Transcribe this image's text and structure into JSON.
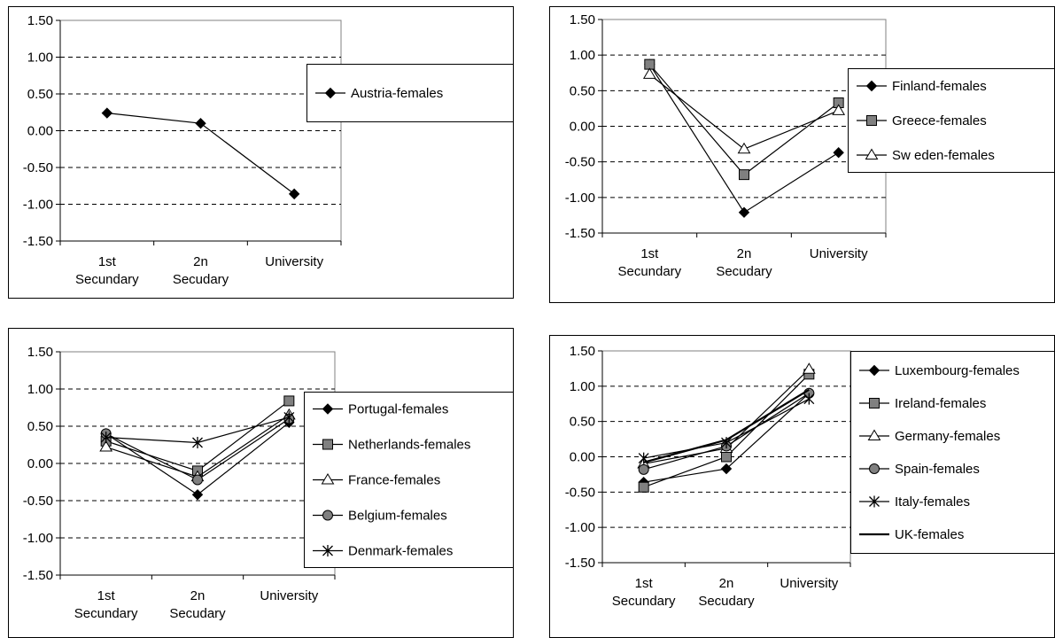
{
  "chart_data": [
    {
      "type": "line",
      "title": "",
      "xlabel": "",
      "ylabel": "",
      "categories": [
        [
          "1st",
          "Secundary"
        ],
        [
          "2n",
          "Secudary"
        ],
        [
          "University"
        ]
      ],
      "ylim": [
        -1.5,
        1.5
      ],
      "yticks": [
        "1.50",
        "1.00",
        "0.50",
        "0.00",
        "-0.50",
        "-1.00",
        "-1.50"
      ],
      "grid": "dashed horizontal",
      "legend_position": "right",
      "series": [
        {
          "name": "Austria-females",
          "marker": "diamond",
          "values": [
            0.24,
            0.1,
            -0.86
          ]
        }
      ]
    },
    {
      "type": "line",
      "title": "",
      "xlabel": "",
      "ylabel": "",
      "categories": [
        [
          "1st",
          "Secundary"
        ],
        [
          "2n",
          "Secudary"
        ],
        [
          "University"
        ]
      ],
      "ylim": [
        -1.5,
        1.5
      ],
      "yticks": [
        "1.50",
        "1.00",
        "0.50",
        "0.00",
        "-0.50",
        "-1.00",
        "-1.50"
      ],
      "grid": "dashed horizontal",
      "legend_position": "right",
      "series": [
        {
          "name": "Finland-females",
          "marker": "diamond",
          "values": [
            0.87,
            -1.21,
            -0.37
          ]
        },
        {
          "name": "Greece-females",
          "marker": "square",
          "values": [
            0.87,
            -0.68,
            0.33
          ]
        },
        {
          "name": "Sw eden-females",
          "marker": "triangle",
          "values": [
            0.73,
            -0.32,
            0.22
          ]
        }
      ]
    },
    {
      "type": "line",
      "title": "",
      "xlabel": "",
      "ylabel": "",
      "categories": [
        [
          "1st",
          "Secundary"
        ],
        [
          "2n",
          "Secudary"
        ],
        [
          "University"
        ]
      ],
      "ylim": [
        -1.5,
        1.5
      ],
      "yticks": [
        "1.50",
        "1.00",
        "0.50",
        "0.00",
        "-0.50",
        "-1.00",
        "-1.50"
      ],
      "grid": "dashed horizontal",
      "legend_position": "right",
      "series": [
        {
          "name": "Portugal-females",
          "marker": "diamond",
          "values": [
            0.4,
            -0.42,
            0.55
          ]
        },
        {
          "name": "Netherlands-females",
          "marker": "square",
          "values": [
            0.3,
            -0.1,
            0.84
          ]
        },
        {
          "name": "France-females",
          "marker": "triangle",
          "values": [
            0.22,
            -0.18,
            0.65
          ]
        },
        {
          "name": "Belgium-females",
          "marker": "circle",
          "values": [
            0.4,
            -0.22,
            0.6
          ]
        },
        {
          "name": "Denmark-females",
          "marker": "star",
          "values": [
            0.35,
            0.28,
            0.62
          ]
        }
      ]
    },
    {
      "type": "line",
      "title": "",
      "xlabel": "",
      "ylabel": "",
      "categories": [
        [
          "1st",
          "Secundary"
        ],
        [
          "2n",
          "Secudary"
        ],
        [
          "University"
        ]
      ],
      "ylim": [
        -1.5,
        1.5
      ],
      "yticks": [
        "1.50",
        "1.00",
        "0.50",
        "0.00",
        "-0.50",
        "-1.00",
        "-1.50"
      ],
      "grid": "dashed horizontal",
      "legend_position": "right",
      "series": [
        {
          "name": "Luxembourg-females",
          "marker": "diamond",
          "values": [
            -0.36,
            -0.17,
            0.9
          ]
        },
        {
          "name": "Ireland-females",
          "marker": "square",
          "values": [
            -0.43,
            0.0,
            1.17
          ]
        },
        {
          "name": "Germany-females",
          "marker": "triangle",
          "values": [
            -0.1,
            0.12,
            1.24
          ]
        },
        {
          "name": "Spain-females",
          "marker": "circle",
          "values": [
            -0.18,
            0.15,
            0.9
          ]
        },
        {
          "name": "Italy-females",
          "marker": "star",
          "values": [
            -0.02,
            0.2,
            0.82
          ]
        },
        {
          "name": "UK-females",
          "marker": "none",
          "values": [
            -0.08,
            0.24,
            0.95
          ]
        }
      ]
    }
  ]
}
